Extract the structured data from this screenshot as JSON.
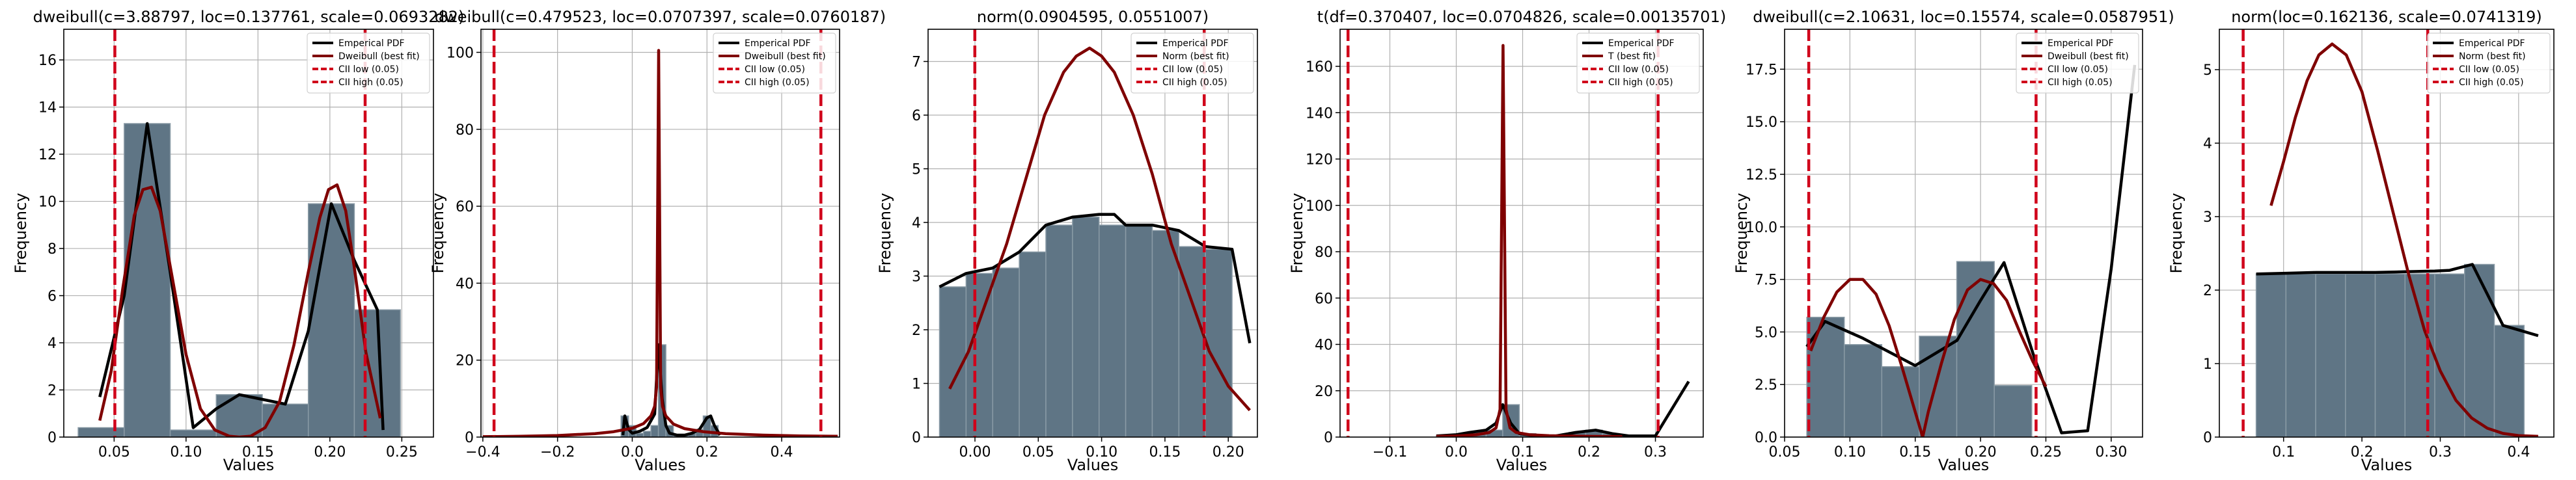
{
  "chart_data": [
    {
      "type": "bar+line",
      "title": "dweibull(c=3.88797, loc=0.137761, scale=0.0693282)",
      "xlabel": "Values",
      "ylabel": "Frequency",
      "xlim": [
        0.015,
        0.272
      ],
      "ylim": [
        0,
        17.3
      ],
      "xticks": [
        0.05,
        0.1,
        0.15,
        0.2,
        0.25
      ],
      "xtick_labels": [
        "0.05",
        "0.10",
        "0.15",
        "0.20",
        "0.25"
      ],
      "yticks": [
        0,
        2,
        4,
        6,
        8,
        10,
        12,
        14,
        16
      ],
      "ytick_labels": [
        "0",
        "2",
        "4",
        "6",
        "8",
        "10",
        "12",
        "14",
        "16"
      ],
      "grid": true,
      "legend_position": "top-right",
      "histogram": {
        "bin_edges": [
          0.025,
          0.057,
          0.089,
          0.121,
          0.153,
          0.185,
          0.217,
          0.249
        ],
        "values": [
          0.4,
          13.3,
          0.3,
          1.8,
          1.4,
          9.9,
          5.4
        ]
      },
      "series": [
        {
          "name": "Emperical PDF",
          "color": "#000000",
          "style": "solid",
          "x": [
            0.04,
            0.057,
            0.073,
            0.089,
            0.105,
            0.121,
            0.137,
            0.153,
            0.169,
            0.185,
            0.201,
            0.217,
            0.233,
            0.237
          ],
          "y": [
            1.7,
            6.0,
            13.3,
            7.0,
            0.4,
            1.2,
            1.8,
            1.6,
            1.4,
            4.5,
            9.9,
            7.5,
            5.4,
            0.3
          ]
        },
        {
          "name": "Dweibull (best fit)",
          "color": "#7f0000",
          "style": "solid",
          "x": [
            0.04,
            0.048,
            0.056,
            0.064,
            0.07,
            0.076,
            0.082,
            0.09,
            0.1,
            0.11,
            0.12,
            0.13,
            0.137,
            0.145,
            0.155,
            0.165,
            0.175,
            0.185,
            0.193,
            0.199,
            0.205,
            0.211,
            0.217,
            0.225,
            0.235
          ],
          "y": [
            0.7,
            2.8,
            6.3,
            9.4,
            10.5,
            10.6,
            9.6,
            6.9,
            3.5,
            1.2,
            0.3,
            0.04,
            0.0,
            0.04,
            0.4,
            1.5,
            3.9,
            7.0,
            9.3,
            10.5,
            10.7,
            9.6,
            7.2,
            3.6,
            0.8
          ]
        },
        {
          "name": "CII low (0.05)",
          "color": "#d62728",
          "style": "dashed",
          "vline": 0.0505
        },
        {
          "name": "CII high (0.05)",
          "color": "#d62728",
          "style": "dashed",
          "vline": 0.2245
        }
      ]
    },
    {
      "type": "bar+line",
      "title": "dweibull(c=0.479523, loc=0.0707397, scale=0.0760187)",
      "xlabel": "Values",
      "ylabel": "Frequency",
      "xlim": [
        -0.405,
        0.555
      ],
      "ylim": [
        0,
        106
      ],
      "xticks": [
        -0.4,
        -0.2,
        0.0,
        0.2,
        0.4
      ],
      "xtick_labels": [
        "−0.4",
        "−0.2",
        "0.0",
        "0.2",
        "0.4"
      ],
      "yticks": [
        0,
        20,
        40,
        60,
        80,
        100
      ],
      "ytick_labels": [
        "0",
        "20",
        "40",
        "60",
        "80",
        "100"
      ],
      "grid": true,
      "legend_position": "top-right",
      "histogram": {
        "bin_edges": [
          -0.03,
          -0.01,
          0.01,
          0.03,
          0.05,
          0.07,
          0.09,
          0.11,
          0.13,
          0.15,
          0.17,
          0.19,
          0.21,
          0.23
        ],
        "values": [
          5.5,
          3.0,
          1.0,
          1.5,
          3.0,
          24.0,
          3.0,
          0.5,
          0.5,
          1.0,
          2.0,
          5.5,
          3.0
        ]
      },
      "series": [
        {
          "name": "Emperical PDF",
          "color": "#000000",
          "style": "solid",
          "x": [
            -0.025,
            -0.02,
            -0.01,
            0.0,
            0.02,
            0.04,
            0.06,
            0.07,
            0.08,
            0.09,
            0.1,
            0.12,
            0.14,
            0.16,
            0.18,
            0.2,
            0.21,
            0.22,
            0.235
          ],
          "y": [
            0.5,
            5.5,
            2.0,
            1.0,
            1.5,
            2.5,
            6.0,
            24.0,
            10.0,
            3.0,
            1.0,
            0.5,
            0.5,
            1.0,
            2.0,
            5.0,
            5.5,
            3.0,
            0.5
          ]
        },
        {
          "name": "Dweibull (best fit)",
          "color": "#7f0000",
          "style": "solid",
          "x": [
            -0.4,
            -0.3,
            -0.2,
            -0.1,
            -0.05,
            0.0,
            0.03,
            0.05,
            0.06,
            0.065,
            0.0707,
            0.076,
            0.081,
            0.09,
            0.11,
            0.14,
            0.19,
            0.25,
            0.35,
            0.45,
            0.55
          ],
          "y": [
            0.1,
            0.2,
            0.4,
            0.9,
            1.4,
            2.3,
            3.5,
            5.5,
            8.0,
            13.0,
            100.5,
            13.0,
            8.0,
            5.5,
            3.4,
            2.2,
            1.4,
            0.9,
            0.5,
            0.3,
            0.2
          ]
        },
        {
          "name": "CII low (0.05)",
          "color": "#d62728",
          "style": "dashed",
          "vline": -0.37
        },
        {
          "name": "CII high (0.05)",
          "color": "#d62728",
          "style": "dashed",
          "vline": 0.505
        }
      ]
    },
    {
      "type": "bar+line",
      "title": "norm(0.0904595, 0.0551007)",
      "xlabel": "Values",
      "ylabel": "Frequency",
      "xlim": [
        -0.037,
        0.223
      ],
      "ylim": [
        0,
        7.6
      ],
      "xticks": [
        0.0,
        0.05,
        0.1,
        0.15,
        0.2
      ],
      "xtick_labels": [
        "0.00",
        "0.05",
        "0.10",
        "0.15",
        "0.20"
      ],
      "yticks": [
        0,
        1,
        2,
        3,
        4,
        5,
        6,
        7
      ],
      "ytick_labels": [
        "0",
        "1",
        "2",
        "3",
        "4",
        "5",
        "6",
        "7"
      ],
      "grid": true,
      "legend_position": "top-right",
      "histogram": {
        "bin_edges": [
          -0.028,
          -0.007,
          0.014,
          0.035,
          0.056,
          0.077,
          0.098,
          0.119,
          0.14,
          0.161,
          0.182,
          0.203
        ],
        "values": [
          2.8,
          3.05,
          3.15,
          3.45,
          3.95,
          4.1,
          3.95,
          3.95,
          3.85,
          3.55,
          3.5
        ]
      },
      "series": [
        {
          "name": "Emperical PDF",
          "color": "#000000",
          "style": "solid",
          "x": [
            -0.028,
            -0.007,
            0.014,
            0.035,
            0.056,
            0.077,
            0.098,
            0.11,
            0.119,
            0.14,
            0.161,
            0.182,
            0.203,
            0.217
          ],
          "y": [
            2.8,
            3.05,
            3.15,
            3.45,
            3.95,
            4.1,
            4.15,
            4.15,
            3.95,
            3.95,
            3.85,
            3.55,
            3.5,
            1.75
          ]
        },
        {
          "name": "Norm (best fit)",
          "color": "#7f0000",
          "style": "solid",
          "x": [
            -0.02,
            -0.005,
            0.01,
            0.025,
            0.04,
            0.055,
            0.07,
            0.08,
            0.0905,
            0.1,
            0.11,
            0.125,
            0.14,
            0.155,
            0.17,
            0.185,
            0.2,
            0.217
          ],
          "y": [
            0.9,
            1.6,
            2.6,
            3.6,
            4.8,
            6.0,
            6.8,
            7.1,
            7.25,
            7.1,
            6.8,
            6.0,
            4.9,
            3.6,
            2.6,
            1.6,
            0.95,
            0.5
          ]
        },
        {
          "name": "CII low (0.05)",
          "color": "#d62728",
          "style": "dashed",
          "vline": -0.0001
        },
        {
          "name": "CII high (0.05)",
          "color": "#d62728",
          "style": "dashed",
          "vline": 0.181
        }
      ]
    },
    {
      "type": "bar+line",
      "title": "t(df=0.370407, loc=0.0704826, scale=0.00135701)",
      "xlabel": "Values",
      "ylabel": "Frequency",
      "xlim": [
        -0.175,
        0.372
      ],
      "ylim": [
        0,
        176
      ],
      "xticks": [
        -0.1,
        0.0,
        0.1,
        0.2,
        0.3
      ],
      "xtick_labels": [
        "−0.1",
        "0.0",
        "0.1",
        "0.2",
        "0.3"
      ],
      "yticks": [
        0,
        20,
        40,
        60,
        80,
        100,
        120,
        140,
        160
      ],
      "ytick_labels": [
        "0",
        "20",
        "40",
        "60",
        "80",
        "100",
        "120",
        "140",
        "160"
      ],
      "grid": true,
      "legend_position": "top-right",
      "histogram": {
        "bin_edges": [
          -0.03,
          -0.005,
          0.02,
          0.045,
          0.07,
          0.095,
          0.12,
          0.145,
          0.17,
          0.195,
          0.22,
          0.245
        ],
        "values": [
          0.5,
          1.0,
          2.0,
          3.0,
          14.0,
          1.5,
          0.5,
          0.5,
          2.0,
          3.0,
          1.5
        ]
      },
      "series": [
        {
          "name": "Emperical PDF",
          "color": "#000000",
          "style": "solid",
          "x": [
            -0.03,
            0.0,
            0.02,
            0.045,
            0.06,
            0.07,
            0.082,
            0.095,
            0.12,
            0.15,
            0.18,
            0.21,
            0.235,
            0.26,
            0.3,
            0.35
          ],
          "y": [
            0.5,
            1.0,
            2.0,
            3.0,
            6.0,
            14.0,
            6.0,
            1.5,
            0.5,
            0.5,
            2.0,
            3.0,
            1.5,
            0.5,
            0.5,
            24.0
          ]
        },
        {
          "name": "T (best fit)",
          "color": "#7f0000",
          "style": "solid",
          "x": [
            -0.03,
            0.0,
            0.03,
            0.05,
            0.06,
            0.066,
            0.0705,
            0.075,
            0.081,
            0.09,
            0.11,
            0.14,
            0.2,
            0.25
          ],
          "y": [
            0.3,
            0.5,
            1.0,
            2.0,
            4.0,
            12.0,
            169.0,
            12.0,
            4.0,
            2.0,
            1.0,
            0.6,
            0.3,
            0.2
          ]
        },
        {
          "name": "CII low (0.05)",
          "color": "#d62728",
          "style": "dashed",
          "vline": -0.163
        },
        {
          "name": "CII high (0.05)",
          "color": "#d62728",
          "style": "dashed",
          "vline": 0.304
        }
      ]
    },
    {
      "type": "bar+line",
      "title": "dweibull(c=2.10631, loc=0.15574, scale=0.0587951)",
      "xlabel": "Values",
      "ylabel": "Frequency",
      "xlim": [
        0.05,
        0.324
      ],
      "ylim": [
        0,
        19.4
      ],
      "xticks": [
        0.05,
        0.1,
        0.15,
        0.2,
        0.25,
        0.3
      ],
      "xtick_labels": [
        "0.05",
        "0.10",
        "0.15",
        "0.20",
        "0.25",
        "0.30"
      ],
      "yticks": [
        0.0,
        2.5,
        5.0,
        7.5,
        10.0,
        12.5,
        15.0,
        17.5
      ],
      "ytick_labels": [
        "0.0",
        "2.5",
        "5.0",
        "7.5",
        "10.0",
        "12.5",
        "15.0",
        "17.5"
      ],
      "grid": true,
      "legend_position": "top-right",
      "histogram": {
        "bin_edges": [
          0.067,
          0.0957,
          0.1244,
          0.1531,
          0.1818,
          0.2105,
          0.2392,
          0.2679
        ],
        "values": [
          5.7,
          4.4,
          3.35,
          4.8,
          8.35,
          2.45,
          0.0
        ]
      },
      "series": [
        {
          "name": "Emperical PDF",
          "color": "#000000",
          "style": "solid",
          "x": [
            0.067,
            0.081,
            0.11,
            0.15,
            0.182,
            0.2,
            0.218,
            0.24,
            0.262,
            0.282,
            0.3,
            0.318
          ],
          "y": [
            4.3,
            5.5,
            4.7,
            3.4,
            4.6,
            6.5,
            8.3,
            4.0,
            0.2,
            0.3,
            8.0,
            17.7
          ]
        },
        {
          "name": "Dweibull (best fit)",
          "color": "#7f0000",
          "style": "solid",
          "x": [
            0.07,
            0.08,
            0.09,
            0.1,
            0.11,
            0.12,
            0.13,
            0.14,
            0.15,
            0.1557,
            0.16,
            0.17,
            0.18,
            0.19,
            0.2,
            0.21,
            0.22,
            0.23,
            0.24,
            0.25
          ],
          "y": [
            4.1,
            5.7,
            6.9,
            7.5,
            7.5,
            6.8,
            5.3,
            3.3,
            1.2,
            0.0,
            1.2,
            3.5,
            5.6,
            7.0,
            7.5,
            7.3,
            6.5,
            5.0,
            3.6,
            2.4
          ]
        },
        {
          "name": "CII low (0.05)",
          "color": "#d62728",
          "style": "dashed",
          "vline": 0.0685
        },
        {
          "name": "CII high (0.05)",
          "color": "#d62728",
          "style": "dashed",
          "vline": 0.2425
        }
      ]
    },
    {
      "type": "bar+line",
      "title": "norm(loc=0.162136, scale=0.0741319)",
      "xlabel": "Values",
      "ylabel": "Frequency",
      "xlim": [
        0.018,
        0.445
      ],
      "ylim": [
        0,
        5.55
      ],
      "xticks": [
        0.1,
        0.2,
        0.3,
        0.4
      ],
      "xtick_labels": [
        "0.1",
        "0.2",
        "0.3",
        "0.4"
      ],
      "yticks": [
        0,
        1,
        2,
        3,
        4,
        5
      ],
      "ytick_labels": [
        "0",
        "1",
        "2",
        "3",
        "4",
        "5"
      ],
      "grid": true,
      "legend_position": "top-right",
      "histogram": {
        "bin_edges": [
          0.065,
          0.103,
          0.141,
          0.179,
          0.217,
          0.255,
          0.293,
          0.331,
          0.369,
          0.407
        ],
        "values": [
          2.22,
          2.22,
          2.22,
          2.22,
          2.22,
          2.22,
          2.22,
          2.35,
          1.52
        ]
      },
      "series": [
        {
          "name": "Emperical PDF",
          "color": "#000000",
          "style": "solid",
          "x": [
            0.065,
            0.103,
            0.141,
            0.179,
            0.217,
            0.255,
            0.293,
            0.312,
            0.341,
            0.38,
            0.425
          ],
          "y": [
            2.22,
            2.23,
            2.24,
            2.24,
            2.24,
            2.25,
            2.26,
            2.27,
            2.35,
            1.52,
            1.38
          ]
        },
        {
          "name": "Norm (best fit)",
          "color": "#7f0000",
          "style": "solid",
          "x": [
            0.084,
            0.1,
            0.115,
            0.13,
            0.145,
            0.162,
            0.18,
            0.2,
            0.22,
            0.24,
            0.26,
            0.28,
            0.3,
            0.32,
            0.34,
            0.36,
            0.38,
            0.4,
            0.425
          ],
          "y": [
            3.15,
            3.75,
            4.35,
            4.85,
            5.2,
            5.35,
            5.2,
            4.7,
            3.9,
            3.05,
            2.2,
            1.45,
            0.9,
            0.5,
            0.26,
            0.12,
            0.05,
            0.02,
            0.01
          ]
        },
        {
          "name": "CII low (0.05)",
          "color": "#d62728",
          "style": "dashed",
          "vline": 0.0484
        },
        {
          "name": "CII high (0.05)",
          "color": "#d62728",
          "style": "dashed",
          "vline": 0.284
        }
      ]
    }
  ]
}
